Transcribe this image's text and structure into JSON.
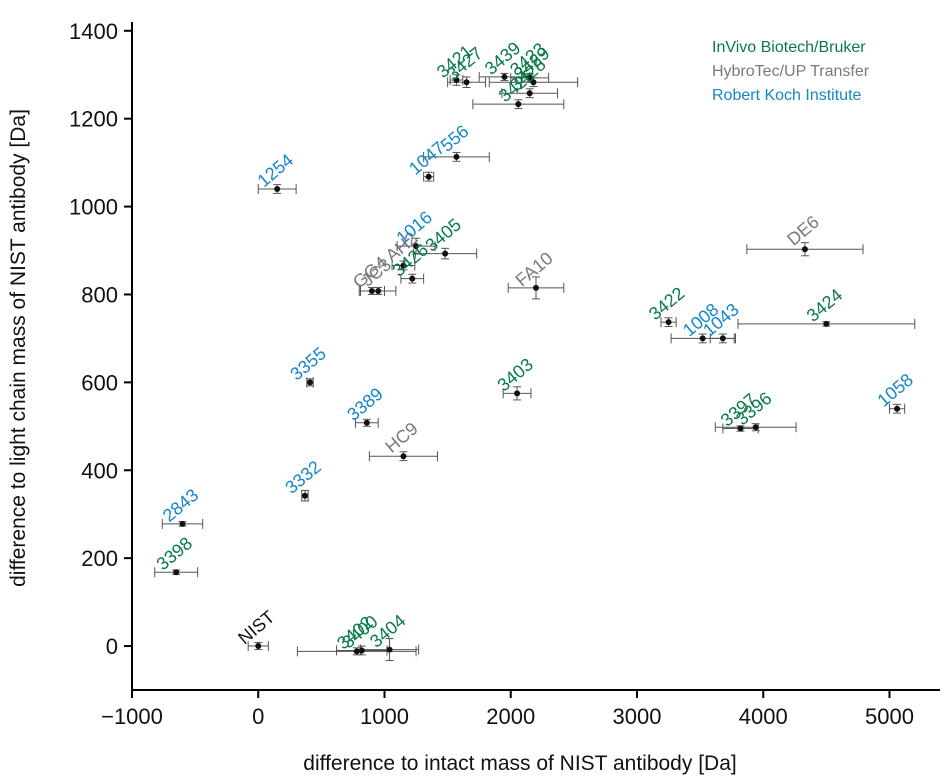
{
  "chart_data": {
    "type": "scatter",
    "xlabel": "difference to intact mass of NIST antibody [Da]",
    "ylabel": "difference to light chain mass of NIST antibody [Da]",
    "xlim": [
      -1000,
      5400
    ],
    "ylim": [
      -100,
      1420
    ],
    "xticks": [
      -1000,
      0,
      1000,
      2000,
      3000,
      4000,
      5000
    ],
    "yticks": [
      0,
      200,
      400,
      600,
      800,
      1000,
      1200,
      1400
    ],
    "xtick_labels": [
      "−1000",
      "0",
      "1000",
      "2000",
      "3000",
      "4000",
      "5000"
    ],
    "ytick_labels": [
      "0",
      "200",
      "400",
      "600",
      "800",
      "1000",
      "1200",
      "1400"
    ],
    "grid": false,
    "error_bars": true,
    "legend_position": "top-right",
    "groups": [
      {
        "name": "InVivo Biotech/Bruker",
        "color": "#0a7a4a"
      },
      {
        "name": "HybroTec/UP Transfer",
        "color": "#7a7a7a"
      },
      {
        "name": "Robert Koch Institute",
        "color": "#1487c8"
      }
    ],
    "points": [
      {
        "label": "NIST",
        "group": -1,
        "x": 0,
        "y": 0,
        "xerr": 80,
        "yerr": 8
      },
      {
        "label": "3398",
        "group": 0,
        "x": -650,
        "y": 168,
        "xerr": 170,
        "yerr": 5
      },
      {
        "label": "2843",
        "group": 2,
        "x": -600,
        "y": 278,
        "xerr": 160,
        "yerr": 5
      },
      {
        "label": "3332",
        "group": 2,
        "x": 370,
        "y": 342,
        "xerr": 25,
        "yerr": 12
      },
      {
        "label": "3355",
        "group": 2,
        "x": 410,
        "y": 600,
        "xerr": 25,
        "yerr": 8
      },
      {
        "label": "1254",
        "group": 2,
        "x": 150,
        "y": 1040,
        "xerr": 150,
        "yerr": 10
      },
      {
        "label": "HC9",
        "group": 1,
        "x": 1150,
        "y": 432,
        "xerr": 270,
        "yerr": 10
      },
      {
        "label": "3389",
        "group": 2,
        "x": 860,
        "y": 508,
        "xerr": 90,
        "yerr": 8
      },
      {
        "label": "GG4",
        "group": 1,
        "x": 900,
        "y": 808,
        "xerr": 100,
        "yerr": 8
      },
      {
        "label": "JC3",
        "group": 1,
        "x": 950,
        "y": 808,
        "xerr": 140,
        "yerr": 8
      },
      {
        "label": "AH2",
        "group": 1,
        "x": 1150,
        "y": 866,
        "xerr": 90,
        "yerr": 10
      },
      {
        "label": "3426",
        "group": 0,
        "x": 1220,
        "y": 836,
        "xerr": 90,
        "yerr": 10
      },
      {
        "label": "1016",
        "group": 2,
        "x": 1250,
        "y": 910,
        "xerr": 150,
        "yerr": 18
      },
      {
        "label": "3405",
        "group": 0,
        "x": 1480,
        "y": 893,
        "xerr": 250,
        "yerr": 12
      },
      {
        "label": "1047",
        "group": 2,
        "x": 1350,
        "y": 1068,
        "xerr": 40,
        "yerr": 10
      },
      {
        "label": "556",
        "group": 2,
        "x": 1570,
        "y": 1113,
        "xerr": 260,
        "yerr": 10
      },
      {
        "label": "3402",
        "group": 0,
        "x": 780,
        "y": -12,
        "xerr": 470,
        "yerr": 8
      },
      {
        "label": "3400",
        "group": 0,
        "x": 820,
        "y": -10,
        "xerr": 200,
        "yerr": 10
      },
      {
        "label": "3404",
        "group": 0,
        "x": 1040,
        "y": -8,
        "xerr": 230,
        "yerr": 25
      },
      {
        "label": "FA10",
        "group": 1,
        "x": 2200,
        "y": 815,
        "xerr": 220,
        "yerr": 25
      },
      {
        "label": "3403",
        "group": 0,
        "x": 2050,
        "y": 575,
        "xerr": 110,
        "yerr": 15
      },
      {
        "label": "3421",
        "group": 0,
        "x": 1570,
        "y": 1288,
        "xerr": 50,
        "yerr": 12
      },
      {
        "label": "3427",
        "group": 0,
        "x": 1650,
        "y": 1283,
        "xerr": 150,
        "yerr": 12
      },
      {
        "label": "3439",
        "group": 0,
        "x": 1950,
        "y": 1295,
        "xerr": 200,
        "yerr": 8
      },
      {
        "label": "3423",
        "group": 0,
        "x": 2150,
        "y": 1293,
        "xerr": 150,
        "yerr": 10
      },
      {
        "label": "3429",
        "group": 0,
        "x": 2180,
        "y": 1283,
        "xerr": 350,
        "yerr": 10
      },
      {
        "label": "3428",
        "group": 0,
        "x": 2150,
        "y": 1258,
        "xerr": 220,
        "yerr": 10
      },
      {
        "label": "3425",
        "group": 0,
        "x": 2060,
        "y": 1233,
        "xerr": 360,
        "yerr": 10
      },
      {
        "label": "3422",
        "group": 0,
        "x": 3250,
        "y": 737,
        "xerr": 60,
        "yerr": 10
      },
      {
        "label": "1008",
        "group": 2,
        "x": 3520,
        "y": 700,
        "xerr": 250,
        "yerr": 10
      },
      {
        "label": "1043",
        "group": 2,
        "x": 3680,
        "y": 700,
        "xerr": 100,
        "yerr": 10
      },
      {
        "label": "3424",
        "group": 0,
        "x": 4500,
        "y": 733,
        "xerr": 700,
        "yerr": 5
      },
      {
        "label": "DE6",
        "group": 1,
        "x": 4330,
        "y": 903,
        "xerr": 460,
        "yerr": 15
      },
      {
        "label": "3397",
        "group": 0,
        "x": 3820,
        "y": 495,
        "xerr": 140,
        "yerr": 6
      },
      {
        "label": "3396",
        "group": 0,
        "x": 3940,
        "y": 498,
        "xerr": 320,
        "yerr": 8
      },
      {
        "label": "1058",
        "group": 2,
        "x": 5060,
        "y": 540,
        "xerr": 60,
        "yerr": 10
      }
    ]
  }
}
